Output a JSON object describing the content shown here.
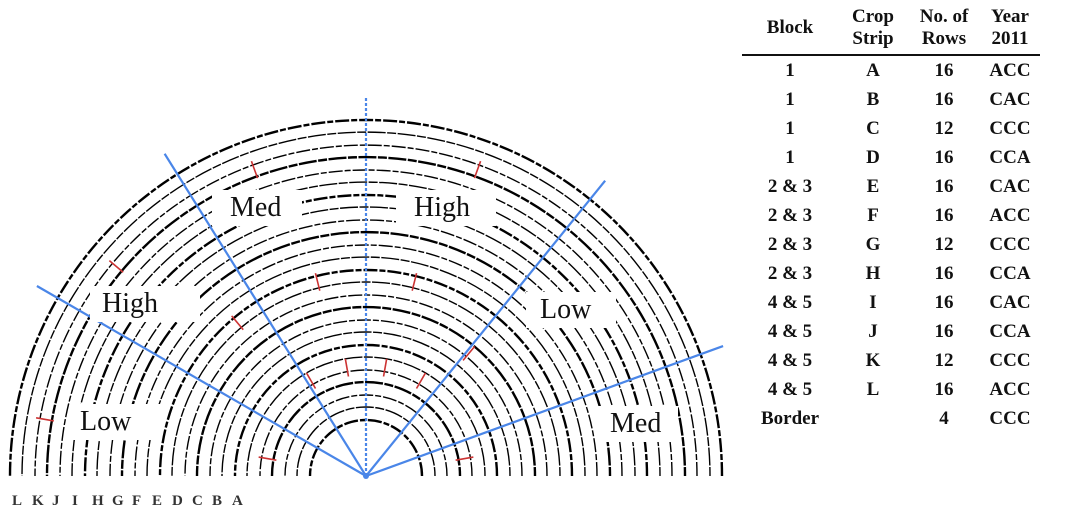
{
  "diagram": {
    "zone_labels": {
      "low_left": "Low",
      "high_left": "High",
      "med_upper_left": "Med",
      "high_upper_right": "High",
      "low_right": "Low",
      "med_right": "Med"
    },
    "strip_letters": [
      "L",
      "K",
      "J",
      "I",
      "H",
      "G",
      "F",
      "E",
      "D",
      "C",
      "B",
      "A"
    ],
    "colors": {
      "ring": "#000000",
      "radial_line": "#4a86e8",
      "tick": "#cc3333"
    }
  },
  "table": {
    "headers": {
      "block": "Block",
      "strip_line1": "Crop",
      "strip_line2": "Strip",
      "rows_line1": "No. of",
      "rows_line2": "Rows",
      "year_line1": "Year",
      "year_line2": "2011"
    },
    "rows": [
      {
        "block": "1",
        "strip": "A",
        "rows": "16",
        "year": "ACC"
      },
      {
        "block": "1",
        "strip": "B",
        "rows": "16",
        "year": "CAC"
      },
      {
        "block": "1",
        "strip": "C",
        "rows": "12",
        "year": "CCC"
      },
      {
        "block": "1",
        "strip": "D",
        "rows": "16",
        "year": "CCA"
      },
      {
        "block": "2 & 3",
        "strip": "E",
        "rows": "16",
        "year": "CAC"
      },
      {
        "block": "2 & 3",
        "strip": "F",
        "rows": "16",
        "year": "ACC"
      },
      {
        "block": "2 & 3",
        "strip": "G",
        "rows": "12",
        "year": "CCC"
      },
      {
        "block": "2 & 3",
        "strip": "H",
        "rows": "16",
        "year": "CCA"
      },
      {
        "block": "4 & 5",
        "strip": "I",
        "rows": "16",
        "year": "CAC"
      },
      {
        "block": "4 & 5",
        "strip": "J",
        "rows": "16",
        "year": "CCA"
      },
      {
        "block": "4 & 5",
        "strip": "K",
        "rows": "12",
        "year": "CCC"
      },
      {
        "block": "4 & 5",
        "strip": "L",
        "rows": "16",
        "year": "ACC"
      },
      {
        "block": "Border",
        "strip": "",
        "rows": "4",
        "year": "CCC"
      }
    ]
  }
}
